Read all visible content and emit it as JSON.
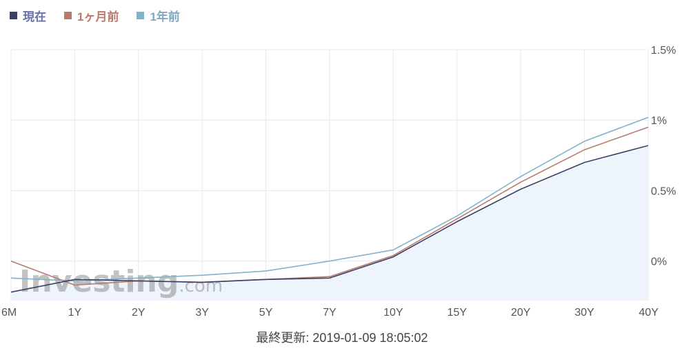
{
  "chart_data": {
    "type": "line",
    "categories": [
      "6M",
      "1Y",
      "2Y",
      "3Y",
      "5Y",
      "7Y",
      "10Y",
      "15Y",
      "20Y",
      "30Y",
      "40Y"
    ],
    "series": [
      {
        "name": "現在",
        "color": "#3b4068",
        "values": [
          -0.22,
          -0.13,
          -0.14,
          -0.15,
          -0.13,
          -0.12,
          0.03,
          0.28,
          0.51,
          0.7,
          0.82
        ]
      },
      {
        "name": "1ヶ月前",
        "color": "#b97a6b",
        "values": [
          0.0,
          -0.17,
          -0.14,
          -0.15,
          -0.13,
          -0.11,
          0.04,
          0.3,
          0.56,
          0.79,
          0.95
        ]
      },
      {
        "name": "1年前",
        "color": "#7fb3cc",
        "values": [
          -0.12,
          -0.14,
          -0.12,
          -0.1,
          -0.07,
          0.0,
          0.08,
          0.32,
          0.6,
          0.85,
          1.02
        ]
      }
    ],
    "y_ticks": [
      {
        "value": 0,
        "label": "0%"
      },
      {
        "value": 0.5,
        "label": "0.5%"
      },
      {
        "value": 1,
        "label": "1%"
      },
      {
        "value": 1.5,
        "label": "1.5%"
      }
    ],
    "ylim": [
      -0.28,
      1.5
    ],
    "grid": true,
    "legend_position": "top-left",
    "area_fill_series": 0,
    "area_fill_color": "#eef4fb"
  },
  "legend_text_colors": [
    "#6872a8",
    "#b97a6b",
    "#7fa8c0"
  ],
  "watermark": {
    "text": "Investing",
    "suffix": ".com"
  },
  "footer": {
    "last_updated": "最終更新: 2019-01-09 18:05:02"
  }
}
